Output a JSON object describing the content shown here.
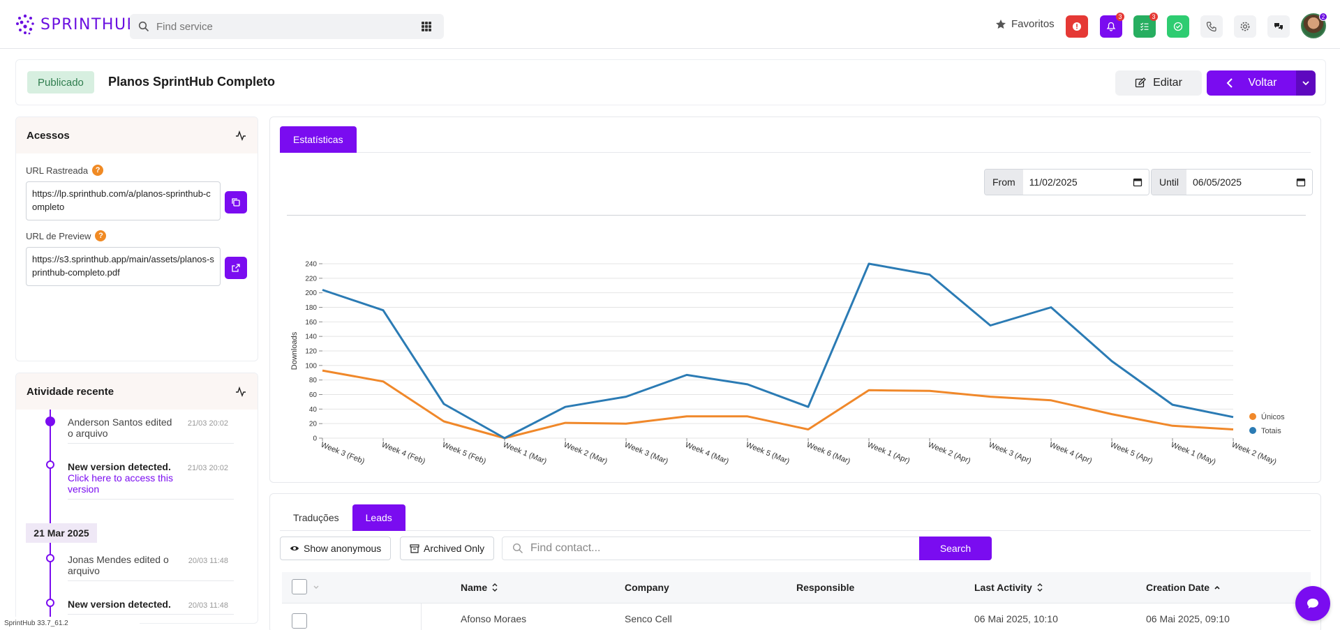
{
  "app": {
    "logo_text": "SPRINTHUB",
    "search_placeholder": "Find service",
    "favorites_label": "Favoritos",
    "notif_badge_1": "3",
    "notif_badge_2": "3",
    "version": "SprintHub 33.7_61.2",
    "colors": {
      "accent": "#7a0cf0",
      "success": "#27ae60",
      "danger": "#e53935"
    }
  },
  "header": {
    "status": "Publicado",
    "title": "Planos SprintHub Completo",
    "edit_label": "Editar",
    "back_label": "Voltar"
  },
  "access_panel": {
    "title": "Acessos",
    "tracked_url_label": "URL Rastreada",
    "tracked_url": "https://lp.sprinthub.com/a/planos-sprinthub-completo",
    "preview_url_label": "URL de Preview",
    "preview_url": "https://s3.sprinthub.app/main/assets/planos-sprinthub-completo.pdf"
  },
  "activity_panel": {
    "title": "Atividade recente",
    "items": [
      {
        "text": "Anderson Santos edited o arquivo",
        "time": "21/03 20:02"
      },
      {
        "bold": "New version detected.",
        "link": "Click here to access this version",
        "time": "21/03 20:02"
      },
      {
        "text": "Jonas Mendes edited o arquivo",
        "time": "20/03 11:48"
      },
      {
        "bold": "New version detected.",
        "time": "20/03 11:48"
      }
    ],
    "date_separator": "21 Mar 2025"
  },
  "stats": {
    "tab_label": "Estatísticas",
    "from_label": "From",
    "from_value": "11/02/2025",
    "until_label": "Until",
    "until_value": "06/05/2025"
  },
  "chart_data": {
    "type": "line",
    "title": "",
    "xlabel": "",
    "ylabel": "Downloads",
    "ylim": [
      0,
      240
    ],
    "yticks": [
      0,
      20,
      40,
      60,
      80,
      100,
      120,
      140,
      160,
      180,
      200,
      220,
      240
    ],
    "categories": [
      "Week 3 (Feb)",
      "Week 4 (Feb)",
      "Week 5 (Feb)",
      "Week 1 (Mar)",
      "Week 2 (Mar)",
      "Week 3 (Mar)",
      "Week 4 (Mar)",
      "Week 5 (Mar)",
      "Week 6 (Mar)",
      "Week 1 (Apr)",
      "Week 2 (Apr)",
      "Week 3 (Apr)",
      "Week 4 (Apr)",
      "Week 5 (Apr)",
      "Week 1 (May)",
      "Week 2 (May)"
    ],
    "series": [
      {
        "name": "Únicos",
        "color": "#f0882a",
        "values": [
          93,
          78,
          23,
          0,
          21,
          20,
          30,
          30,
          12,
          66,
          65,
          57,
          52,
          33,
          17,
          12
        ]
      },
      {
        "name": "Totais",
        "color": "#2b7bb4",
        "values": [
          204,
          176,
          47,
          0,
          43,
          57,
          87,
          74,
          43,
          240,
          225,
          155,
          180,
          106,
          46,
          29
        ]
      }
    ],
    "grid": true,
    "legend": "right"
  },
  "leads": {
    "tabs": [
      "Traduções",
      "Leads"
    ],
    "show_anonymous": "Show anonymous",
    "archived_only": "Archived Only",
    "search_placeholder": "Find contact...",
    "search_button": "Search",
    "columns": [
      "Name",
      "Company",
      "Responsible",
      "Last Activity",
      "Creation Date"
    ],
    "first_row": {
      "name": "Afonso Moraes",
      "company": "Senco Cell",
      "last_activity": "06 Mai 2025, 10:10",
      "creation_date": "06 Mai 2025, 09:10"
    }
  }
}
